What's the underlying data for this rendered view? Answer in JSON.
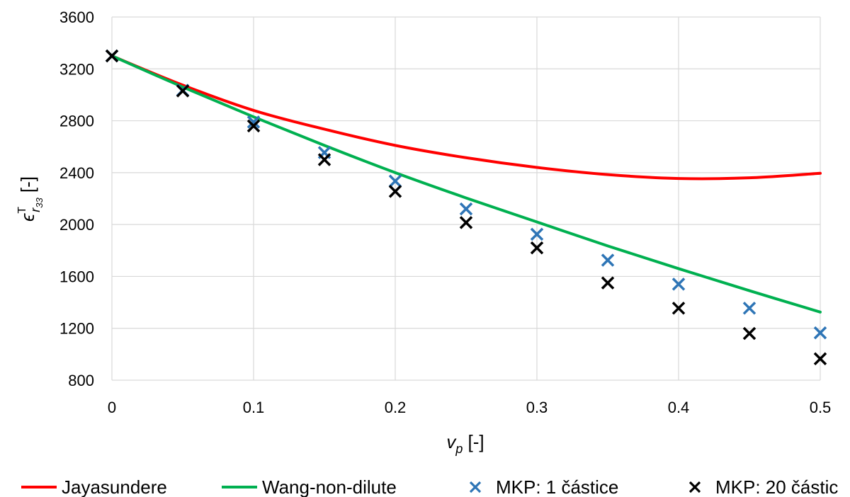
{
  "chart_data": {
    "type": "line",
    "xlabel": "v_p [-]",
    "xlabel_main": "v",
    "xlabel_sub": "p",
    "xlabel_unit": " [-]",
    "ylabel": "ε_r33^T [-]",
    "ylabel_main": "ϵ",
    "ylabel_sup": "T",
    "ylabel_sub": "r",
    "ylabel_subsub": "33",
    "ylabel_unit": " [-]",
    "xlim": [
      0,
      0.5
    ],
    "ylim": [
      800,
      3600
    ],
    "xticks": [
      0,
      0.1,
      0.2,
      0.3,
      0.4,
      0.5
    ],
    "xtick_labels": [
      "0",
      "0.1",
      "0.2",
      "0.3",
      "0.4",
      "0.5"
    ],
    "yticks": [
      800,
      1200,
      1600,
      2000,
      2400,
      2800,
      3200,
      3600
    ],
    "ytick_labels": [
      "800",
      "1200",
      "1600",
      "2000",
      "2400",
      "2800",
      "3200",
      "3600"
    ],
    "grid": true,
    "legend_position": "bottom",
    "series": [
      {
        "name": "Jayasundere",
        "kind": "line",
        "color": "#ff0000",
        "x": [
          0,
          0.05,
          0.1,
          0.15,
          0.2,
          0.25,
          0.3,
          0.35,
          0.4,
          0.45,
          0.5
        ],
        "y": [
          3300,
          3075,
          2880,
          2735,
          2610,
          2515,
          2440,
          2385,
          2355,
          2360,
          2395
        ]
      },
      {
        "name": "Wang-non-dilute",
        "kind": "line",
        "color": "#00b050",
        "x": [
          0,
          0.05,
          0.1,
          0.15,
          0.2,
          0.25,
          0.3,
          0.35,
          0.4,
          0.45,
          0.5
        ],
        "y": [
          3300,
          3060,
          2830,
          2610,
          2400,
          2205,
          2020,
          1835,
          1660,
          1490,
          1325
        ]
      },
      {
        "name": "MKP: 1 částice",
        "kind": "marker",
        "color": "#2e75b6",
        "x": [
          0,
          0.05,
          0.1,
          0.15,
          0.2,
          0.25,
          0.3,
          0.35,
          0.4,
          0.45,
          0.5
        ],
        "y": [
          3300,
          3035,
          2790,
          2555,
          2335,
          2120,
          1925,
          1725,
          1540,
          1355,
          1165
        ]
      },
      {
        "name": "MKP: 20 částic",
        "kind": "marker",
        "color": "#000000",
        "x": [
          0,
          0.05,
          0.1,
          0.15,
          0.2,
          0.25,
          0.3,
          0.35,
          0.4,
          0.45,
          0.5
        ],
        "y": [
          3300,
          3030,
          2760,
          2500,
          2255,
          2015,
          1820,
          1550,
          1355,
          1160,
          965
        ]
      }
    ]
  }
}
